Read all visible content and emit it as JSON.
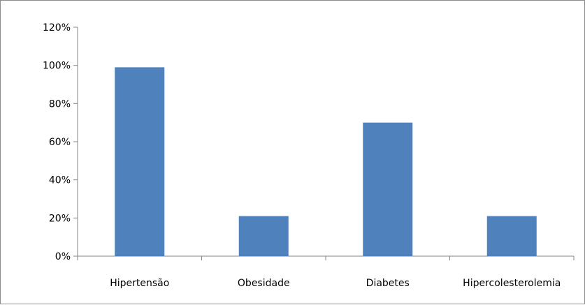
{
  "chart_data": {
    "type": "bar",
    "title": "",
    "xlabel": "",
    "ylabel": "",
    "categories": [
      "Hipertensão",
      "Obesidade",
      "Diabetes",
      "Hipercolesterolemia"
    ],
    "values": [
      99,
      21,
      70,
      21
    ],
    "ylim": [
      0,
      120
    ],
    "y_ticks": [
      "0%",
      "20%",
      "40%",
      "60%",
      "80%",
      "100%",
      "120%"
    ],
    "y_tick_values": [
      0,
      20,
      40,
      60,
      80,
      100,
      120
    ],
    "grid": false,
    "legend": "none",
    "bar_color": "#4f81bd"
  }
}
